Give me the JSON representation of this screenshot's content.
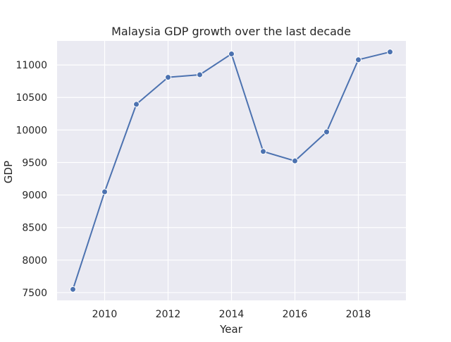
{
  "chart_data": {
    "type": "line",
    "title": "Malaysia GDP growth over the last decade",
    "xlabel": "Year",
    "ylabel": "GDP",
    "x": [
      2009,
      2010,
      2011,
      2012,
      2013,
      2014,
      2015,
      2016,
      2017,
      2018,
      2019
    ],
    "series": [
      {
        "values": [
          7550,
          9050,
          10395,
          10810,
          10850,
          11170,
          9670,
          9525,
          9970,
          11080,
          11200
        ],
        "color": "#4c72b0"
      }
    ],
    "xlim": [
      2008.5,
      2019.5
    ],
    "ylim": [
      7380,
      11370
    ],
    "x_ticks": [
      2010,
      2012,
      2014,
      2016,
      2018
    ],
    "y_ticks": [
      7500,
      8000,
      8500,
      9000,
      9500,
      10000,
      10500,
      11000
    ],
    "grid": true,
    "legend": false,
    "background_color": "#eaeaf2",
    "marker": "circle"
  }
}
